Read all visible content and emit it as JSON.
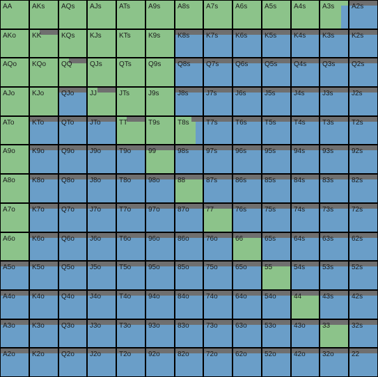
{
  "colors": {
    "raise": "#8cc38a",
    "fold": "#6a9ec8",
    "strip": "#6f6f6f",
    "grid": "#000000",
    "label": "#1c1c1c"
  },
  "hands": [
    [
      "AA",
      "AKs",
      "AQs",
      "AJs",
      "ATs",
      "A9s",
      "A8s",
      "A7s",
      "A6s",
      "A5s",
      "A4s",
      "A3s",
      "A2s"
    ],
    [
      "AKo",
      "KK",
      "KQs",
      "KJs",
      "KTs",
      "K9s",
      "K8s",
      "K7s",
      "K6s",
      "K5s",
      "K4s",
      "K3s",
      "K2s"
    ],
    [
      "AQo",
      "KQo",
      "QQ",
      "QJs",
      "QTs",
      "Q9s",
      "Q8s",
      "Q7s",
      "Q6s",
      "Q5s",
      "Q4s",
      "Q3s",
      "Q2s"
    ],
    [
      "AJo",
      "KJo",
      "QJo",
      "JJ",
      "JTs",
      "J9s",
      "J8s",
      "J7s",
      "J6s",
      "J5s",
      "J4s",
      "J3s",
      "J2s"
    ],
    [
      "ATo",
      "KTo",
      "QTo",
      "JTo",
      "TT",
      "T9s",
      "T8s",
      "T7s",
      "T6s",
      "T5s",
      "T4s",
      "T3s",
      "T2s"
    ],
    [
      "A9o",
      "K9o",
      "Q9o",
      "J9o",
      "T9o",
      "99",
      "98s",
      "97s",
      "96s",
      "95s",
      "94s",
      "93s",
      "92s"
    ],
    [
      "A8o",
      "K8o",
      "Q8o",
      "J8o",
      "T8o",
      "98o",
      "88",
      "87s",
      "86s",
      "85s",
      "84s",
      "83s",
      "82s"
    ],
    [
      "A7o",
      "K7o",
      "Q7o",
      "J7o",
      "T7o",
      "97o",
      "87o",
      "77",
      "76s",
      "75s",
      "74s",
      "73s",
      "72s"
    ],
    [
      "A6o",
      "K6o",
      "Q6o",
      "J6o",
      "T6o",
      "96o",
      "86o",
      "76o",
      "66",
      "65s",
      "64s",
      "63s",
      "62s"
    ],
    [
      "A5o",
      "K5o",
      "Q5o",
      "J5o",
      "T5o",
      "95o",
      "85o",
      "75o",
      "65o",
      "55",
      "54s",
      "53s",
      "52s"
    ],
    [
      "A4o",
      "K4o",
      "Q4o",
      "J4o",
      "T4o",
      "94o",
      "84o",
      "74o",
      "64o",
      "54o",
      "44",
      "43s",
      "42s"
    ],
    [
      "A3o",
      "K3o",
      "Q3o",
      "J3o",
      "T3o",
      "93o",
      "83o",
      "73o",
      "63o",
      "53o",
      "43o",
      "33",
      "32s"
    ],
    [
      "A2o",
      "K2o",
      "Q2o",
      "J2o",
      "T2o",
      "92o",
      "82o",
      "72o",
      "62o",
      "52o",
      "42o",
      "32o",
      "22"
    ]
  ],
  "raise_freq": [
    [
      1,
      1,
      1,
      1,
      1,
      1,
      1,
      1,
      1,
      1,
      1,
      0.75,
      0
    ],
    [
      1,
      1,
      1,
      1,
      1,
      1,
      0,
      0,
      0,
      0,
      0,
      0,
      0
    ],
    [
      1,
      1,
      1,
      1,
      1,
      1,
      0,
      0,
      0,
      0,
      0,
      0,
      0
    ],
    [
      1,
      1,
      0,
      1,
      1,
      1,
      0,
      0,
      0,
      0,
      0,
      0,
      0
    ],
    [
      1,
      0,
      0,
      0,
      1,
      1,
      0.75,
      0,
      0,
      0,
      0,
      0,
      0
    ],
    [
      1,
      0,
      0,
      0,
      0,
      1,
      0,
      0,
      0,
      0,
      0,
      0,
      0
    ],
    [
      1,
      0,
      0,
      0,
      0,
      0,
      1,
      0,
      0,
      0,
      0,
      0,
      0
    ],
    [
      1,
      0,
      0,
      0,
      0,
      0,
      0,
      1,
      0,
      0,
      0,
      0,
      0
    ],
    [
      1,
      0,
      0,
      0,
      0,
      0,
      0,
      0,
      1,
      0,
      0,
      0,
      0
    ],
    [
      0,
      0,
      0,
      0,
      0,
      0,
      0,
      0,
      0,
      1,
      0,
      0,
      0
    ],
    [
      0,
      0,
      0,
      0,
      0,
      0,
      0,
      0,
      0,
      0,
      1,
      0,
      0
    ],
    [
      0,
      0,
      0,
      0,
      0,
      0,
      0,
      0,
      0,
      0,
      0,
      1,
      0
    ],
    [
      0,
      0,
      0,
      0,
      0,
      0,
      0,
      0,
      0,
      0,
      0,
      0,
      0
    ]
  ],
  "strip_freq": [
    [
      1,
      1,
      1,
      1,
      1,
      1,
      1,
      1,
      1,
      1,
      1,
      1,
      0
    ],
    [
      1,
      0.35,
      1,
      1,
      1,
      1,
      0,
      0,
      0,
      0,
      0,
      0,
      0
    ],
    [
      1,
      1,
      0.35,
      1,
      1,
      1,
      0,
      0,
      0,
      0,
      0,
      0,
      0
    ],
    [
      1,
      1,
      0,
      0.35,
      1,
      1,
      0,
      0,
      0,
      0,
      0,
      0,
      0
    ],
    [
      1,
      0,
      0,
      0,
      0.35,
      1,
      0.6,
      0,
      0,
      0,
      0,
      0,
      0
    ],
    [
      1,
      0,
      0,
      0,
      0,
      0,
      0,
      0,
      0,
      0,
      0,
      0,
      0
    ],
    [
      1,
      0,
      0,
      0,
      0,
      0,
      0,
      0,
      0,
      0,
      0,
      0,
      0
    ],
    [
      1,
      0,
      0,
      0,
      0,
      0,
      0,
      0,
      0,
      0,
      0,
      0,
      0
    ],
    [
      1,
      0,
      0,
      0,
      0,
      0,
      0,
      0,
      0,
      0,
      0,
      0,
      0
    ],
    [
      0,
      0,
      0,
      0,
      0,
      0,
      0,
      0,
      0,
      0,
      0,
      0,
      0
    ],
    [
      0,
      0,
      0,
      0,
      0,
      0,
      0,
      0,
      0,
      0,
      0,
      0,
      0
    ],
    [
      0,
      0,
      0,
      0,
      0,
      0,
      0,
      0,
      0,
      0,
      0,
      0,
      0
    ],
    [
      0,
      0,
      0,
      0,
      0,
      0,
      0,
      0,
      0,
      0,
      0,
      0,
      0
    ]
  ]
}
